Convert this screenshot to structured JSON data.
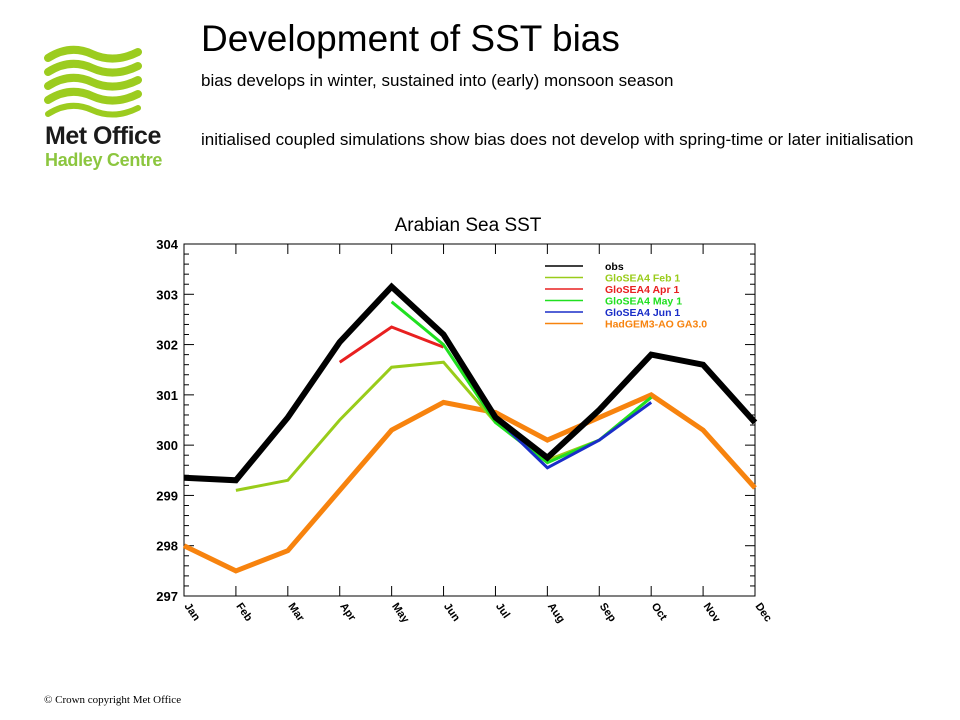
{
  "slide": {
    "title": "Development of SST bias",
    "subtitle": "bias develops in winter, sustained into (early) monsoon season",
    "description": "initialised coupled simulations show bias does not develop with spring-time or later initialisation",
    "footer": "© Crown copyright   Met Office"
  },
  "logo": {
    "line1": "Met Office",
    "line2": "Hadley Centre",
    "icon": "wave-stripes-logo",
    "colors": {
      "green": "#9ccc1f",
      "dark": "#1b1b1b"
    }
  },
  "chart_data": {
    "type": "line",
    "title": "Arabian Sea SST",
    "xlabel": "",
    "ylabel": "",
    "categories": [
      "Jan",
      "Feb",
      "Mar",
      "Apr",
      "May",
      "Jun",
      "Jul",
      "Aug",
      "Sep",
      "Oct",
      "Nov",
      "Dec"
    ],
    "ylim": [
      297,
      304
    ],
    "yticks": [
      297,
      298,
      299,
      300,
      301,
      302,
      303,
      304
    ],
    "grid": false,
    "legend_position": "top-right",
    "series": [
      {
        "name": "HadGEM3-AO GA3.0",
        "color": "#f7830e",
        "width": 5,
        "values": [
          298.0,
          297.5,
          297.9,
          299.1,
          300.3,
          300.85,
          300.65,
          300.1,
          300.55,
          301.0,
          300.3,
          299.15
        ]
      },
      {
        "name": "GloSEA4 Feb 1",
        "color": "#99cc1a",
        "width": 3,
        "values": [
          null,
          299.1,
          299.3,
          300.5,
          301.55,
          301.65,
          300.45,
          299.7,
          300.1,
          300.95,
          null,
          null
        ]
      },
      {
        "name": "GloSEA4 Apr 1",
        "color": "#e82020",
        "width": 3,
        "values": [
          null,
          null,
          null,
          301.65,
          302.35,
          301.95,
          null,
          null,
          null,
          null,
          null,
          null
        ]
      },
      {
        "name": "GloSEA4 May 1",
        "color": "#20e020",
        "width": 3,
        "values": [
          null,
          null,
          null,
          null,
          302.85,
          302.0,
          300.45,
          299.65,
          300.1,
          300.95,
          null,
          null
        ]
      },
      {
        "name": "GloSEA4 Jun 1",
        "color": "#1a2ec8",
        "width": 3,
        "values": [
          null,
          null,
          null,
          null,
          null,
          302.2,
          300.55,
          299.55,
          300.1,
          300.85,
          null,
          null
        ]
      },
      {
        "name": "obs",
        "color": "#000000",
        "width": 6,
        "values": [
          299.35,
          299.3,
          300.55,
          302.05,
          303.15,
          302.2,
          300.55,
          299.75,
          300.7,
          301.8,
          301.6,
          300.45
        ]
      }
    ],
    "legend_order": [
      "obs",
      "GloSEA4 Feb 1",
      "GloSEA4 Apr 1",
      "GloSEA4 May 1",
      "GloSEA4 Jun 1",
      "HadGEM3-AO GA3.0"
    ]
  }
}
